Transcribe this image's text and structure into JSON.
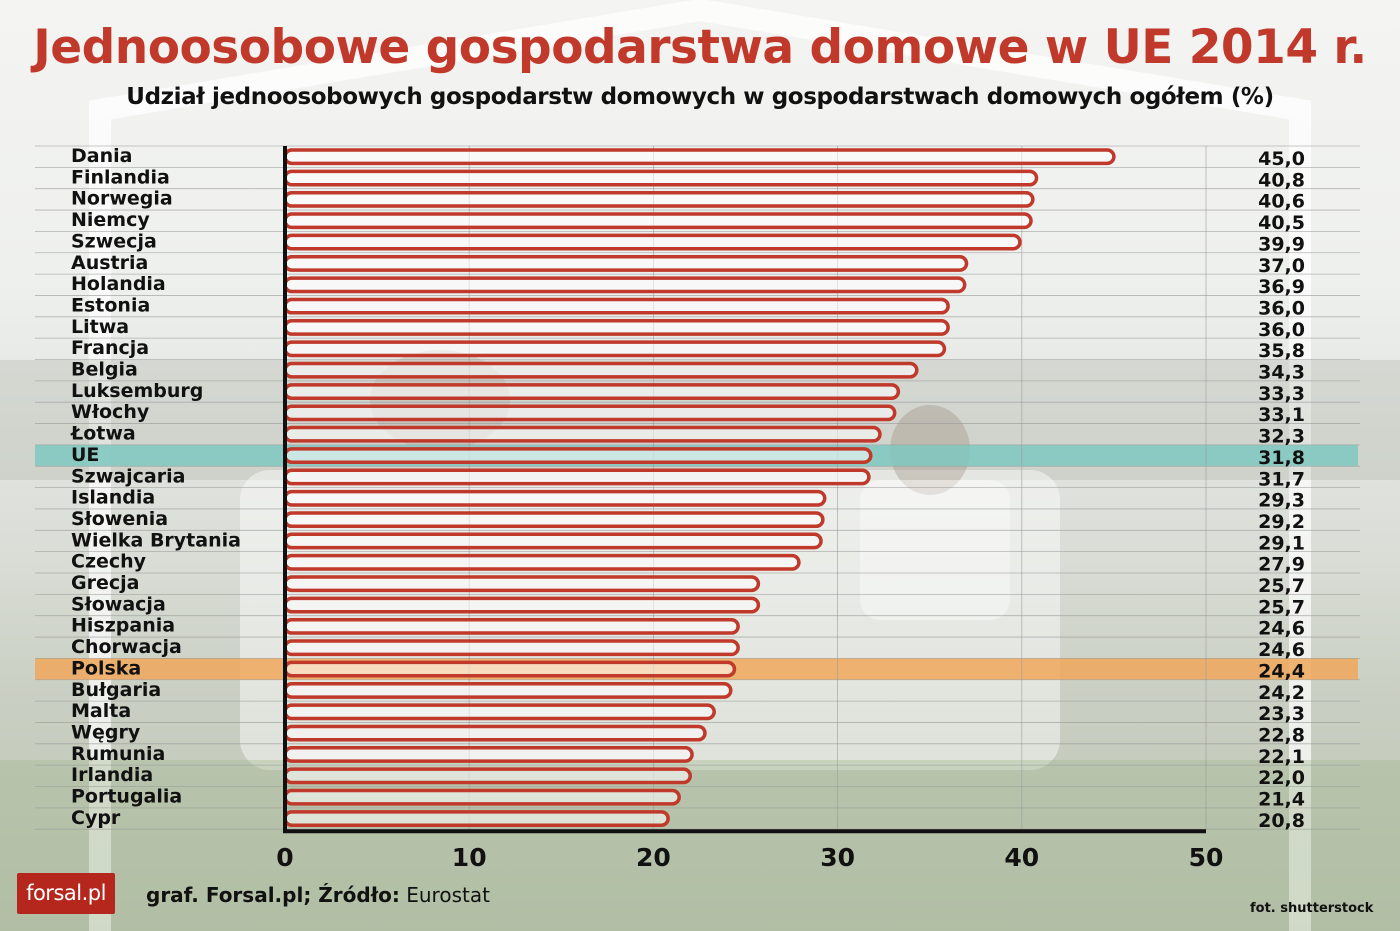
{
  "title": "Jednoosobowe gospodarstwa domowe w UE  2014 r.",
  "subtitle": "Udział jednoosobowych gospodarstw domowych w gospodarstwach domowych ogółem (%)",
  "source_prefix": "graf. Forsal.pl; Źródło:",
  "source_name": "Eurostat",
  "logo_text": "forsal.pl",
  "photo_credit": "fot. shutterstock",
  "colors": {
    "bar_stroke": "#c0392b",
    "highlight_eu": "#7fc8c0",
    "highlight_pl": "#f0a75a"
  },
  "chart_data": {
    "type": "bar",
    "orientation": "horizontal",
    "title": "Jednoosobowe gospodarstwa domowe w UE  2014 r.",
    "subtitle": "Udział jednoosobowych gospodarstw domowych w gospodarstwach domowych ogółem (%)",
    "xlim": [
      0,
      50
    ],
    "xticks": [
      0,
      10,
      20,
      30,
      40,
      50
    ],
    "grid": true,
    "categories": [
      "Dania",
      "Finlandia",
      "Norwegia",
      "Niemcy",
      "Szwecja",
      "Austria",
      "Holandia",
      "Estonia",
      "Litwa",
      "Francja",
      "Belgia",
      "Luksemburg",
      "Włochy",
      "Łotwa",
      "UE",
      "Szwajcaria",
      "Islandia",
      "Słowenia",
      "Wielka Brytania",
      "Czechy",
      "Grecja",
      "Słowacja",
      "Hiszpania",
      "Chorwacja",
      "Polska",
      "Bułgaria",
      "Malta",
      "Węgry",
      "Rumunia",
      "Irlandia",
      "Portugalia",
      "Cypr"
    ],
    "values": [
      45.0,
      40.8,
      40.6,
      40.5,
      39.9,
      37.0,
      36.9,
      36.0,
      36.0,
      35.8,
      34.3,
      33.3,
      33.1,
      32.3,
      31.8,
      31.7,
      29.3,
      29.2,
      29.1,
      27.9,
      25.7,
      25.7,
      24.6,
      24.6,
      24.4,
      24.2,
      23.3,
      22.8,
      22.1,
      22.0,
      21.4,
      20.8
    ],
    "value_labels": [
      "45,0",
      "40,8",
      "40,6",
      "40,5",
      "39,9",
      "37,0",
      "36,9",
      "36,0",
      "36,0",
      "35,8",
      "34,3",
      "33,3",
      "33,1",
      "32,3",
      "31,8",
      "31,7",
      "29,3",
      "29,2",
      "29,1",
      "27,9",
      "25,7",
      "25,7",
      "24,6",
      "24,6",
      "24,4",
      "24,2",
      "23,3",
      "22,8",
      "22,1",
      "22,0",
      "21,4",
      "20,8"
    ],
    "highlights": [
      {
        "category": "UE",
        "color": "#7fc8c0"
      },
      {
        "category": "Polska",
        "color": "#f0a75a"
      }
    ]
  }
}
